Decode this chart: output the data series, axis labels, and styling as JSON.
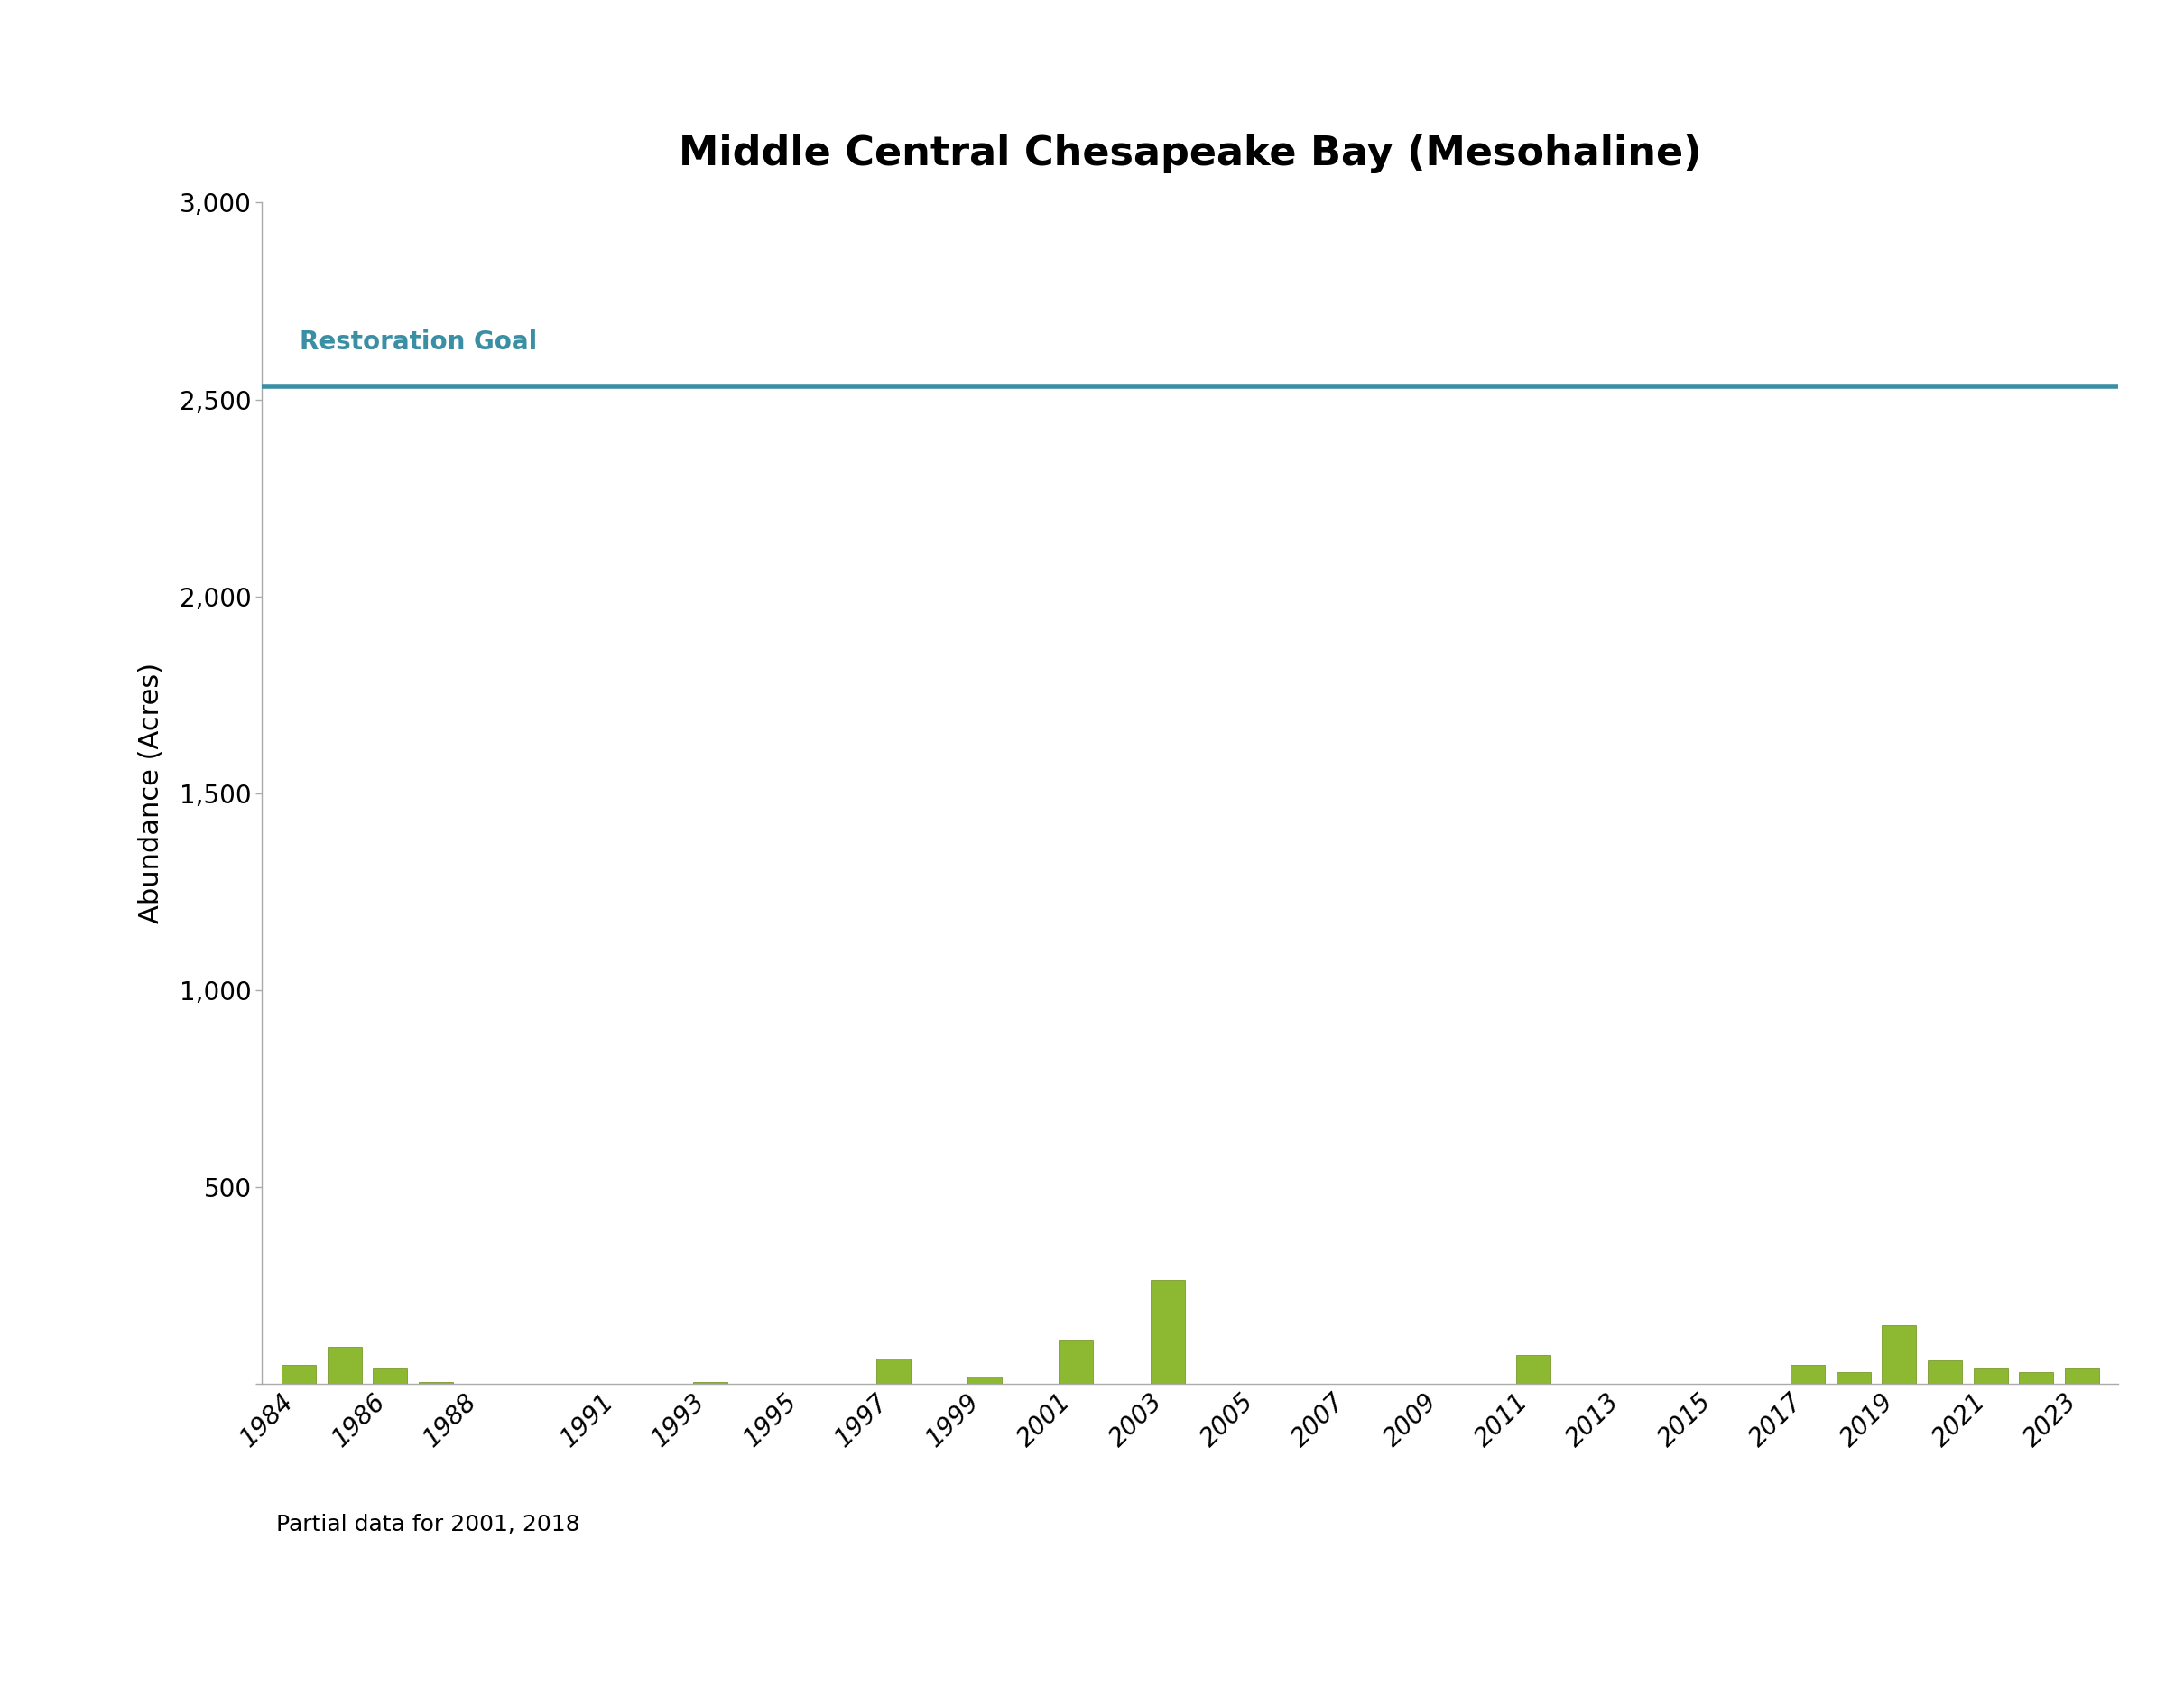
{
  "title": "Middle Central Chesapeake Bay (Mesohaline)",
  "ylabel": "Abundance (Acres)",
  "restoration_goal": 2534,
  "restoration_goal_label": "Restoration Goal",
  "restoration_goal_color": "#3a8fa5",
  "bar_color": "#8db832",
  "bar_color_dark": "#6a8c1a",
  "footnote": "Partial data for 2001, 2018",
  "ylim": [
    0,
    3000
  ],
  "yticks": [
    0,
    500,
    1000,
    1500,
    2000,
    2500,
    3000
  ],
  "years": [
    1984,
    1985,
    1986,
    1987,
    1988,
    1989,
    1990,
    1991,
    1992,
    1993,
    1994,
    1995,
    1996,
    1997,
    1998,
    1999,
    2000,
    2001,
    2002,
    2003,
    2004,
    2005,
    2006,
    2007,
    2008,
    2009,
    2010,
    2011,
    2012,
    2013,
    2014,
    2015,
    2016,
    2017,
    2018,
    2019,
    2020,
    2021,
    2022,
    2023
  ],
  "values": [
    50,
    95,
    40,
    5,
    2,
    2,
    2,
    2,
    2,
    5,
    2,
    2,
    2,
    65,
    2,
    20,
    2,
    110,
    2,
    265,
    2,
    2,
    2,
    2,
    2,
    2,
    2,
    75,
    2,
    2,
    2,
    2,
    2,
    50,
    30,
    150,
    60,
    40,
    30,
    40
  ],
  "background_color": "#ffffff",
  "title_fontsize": 32,
  "axis_label_fontsize": 22,
  "tick_fontsize": 20,
  "footnote_fontsize": 18,
  "restoration_label_fontsize": 20,
  "xtick_years": [
    1984,
    1986,
    1988,
    1991,
    1993,
    1995,
    1997,
    1999,
    2001,
    2003,
    2005,
    2007,
    2009,
    2011,
    2013,
    2015,
    2017,
    2019,
    2021,
    2023
  ]
}
